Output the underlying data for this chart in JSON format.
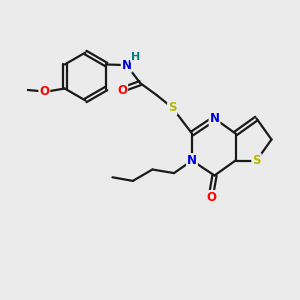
{
  "background_color": "#ebebeb",
  "bond_color": "#1a1a1a",
  "atom_colors": {
    "N": "#0000e0",
    "O": "#ff0000",
    "S_thio": "#b8b800",
    "S_link": "#b8b800",
    "H": "#008080",
    "C": "#1a1a1a"
  },
  "figsize": [
    3.0,
    3.0
  ],
  "dpi": 100
}
